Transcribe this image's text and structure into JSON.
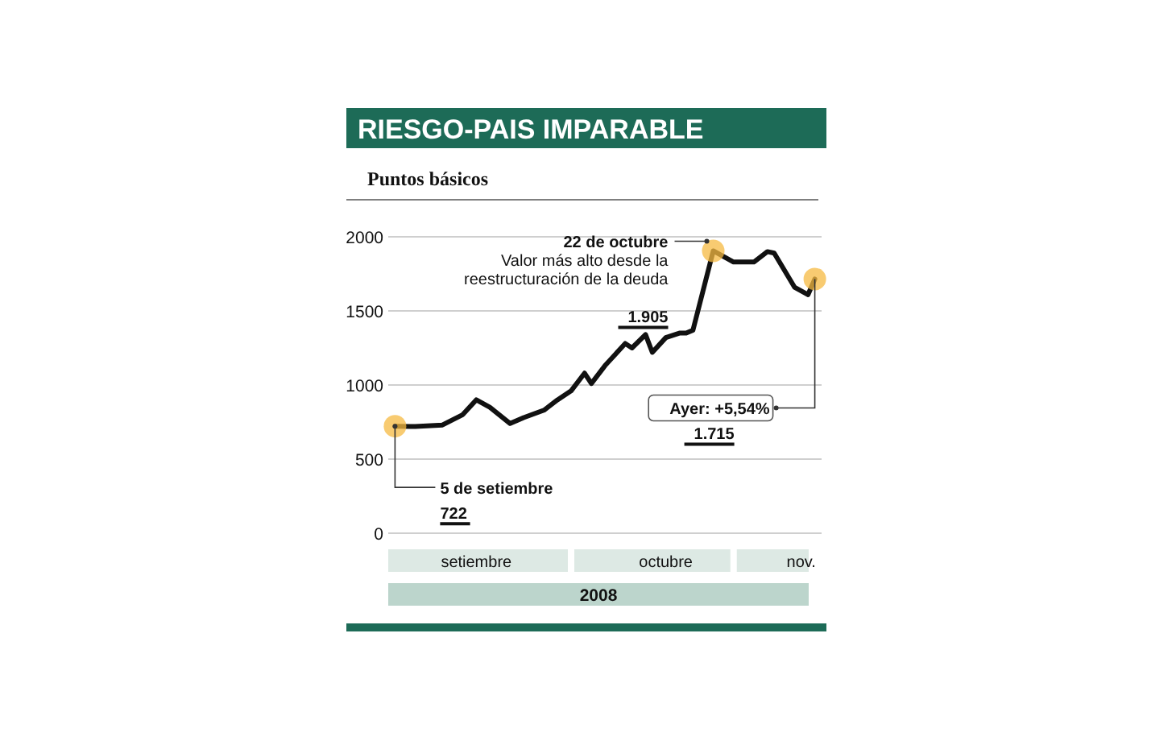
{
  "chart_data": {
    "type": "line",
    "title": "RIESGO-PAIS IMPARABLE",
    "subtitle": "Puntos básicos",
    "xlabel": "2008",
    "x": [
      "2008-09-05",
      "2008-09-08",
      "2008-09-12",
      "2008-09-15",
      "2008-09-17",
      "2008-09-19",
      "2008-09-22",
      "2008-09-24",
      "2008-09-27",
      "2008-09-29",
      "2008-10-01",
      "2008-10-03",
      "2008-10-04",
      "2008-10-06",
      "2008-10-09",
      "2008-10-10",
      "2008-10-12",
      "2008-10-13",
      "2008-10-15",
      "2008-10-17",
      "2008-10-18",
      "2008-10-19",
      "2008-10-22",
      "2008-10-25",
      "2008-10-28",
      "2008-10-30",
      "2008-10-31",
      "2008-11-03",
      "2008-11-05",
      "2008-11-06"
    ],
    "series": [
      {
        "color": "#111111",
        "values": [
          722,
          720,
          730,
          800,
          900,
          850,
          740,
          780,
          830,
          900,
          960,
          1080,
          1010,
          1130,
          1280,
          1250,
          1340,
          1220,
          1320,
          1350,
          1350,
          1370,
          1905,
          1830,
          1830,
          1900,
          1890,
          1660,
          1610,
          1715
        ]
      }
    ],
    "xlim": [
      "2008-09-04",
      "2008-11-07"
    ],
    "xticks": [
      {
        "value": "2008-09-17",
        "label": "setiembre"
      },
      {
        "value": "2008-10-15",
        "label": "octubre"
      },
      {
        "value": "2008-11-04",
        "label": "nov."
      }
    ],
    "ylim": [
      0,
      2000
    ],
    "yticks": [
      0,
      500,
      1000,
      1500,
      2000
    ],
    "grid": "y",
    "marker": "none",
    "line_style": "solid",
    "annotations": [
      {
        "text": "22 de octubre",
        "x": "2008-10-22",
        "y": 1905
      },
      "Valor más alto desde la",
      "reestructuración de la deuda",
      "1.905",
      {
        "text": "5 de setiembre",
        "x": "2008-09-05",
        "y": 722
      },
      "722",
      {
        "text": "Ayer: +5,54%",
        "x": "2008-11-06",
        "y": 1715
      },
      "1.715"
    ]
  }
}
